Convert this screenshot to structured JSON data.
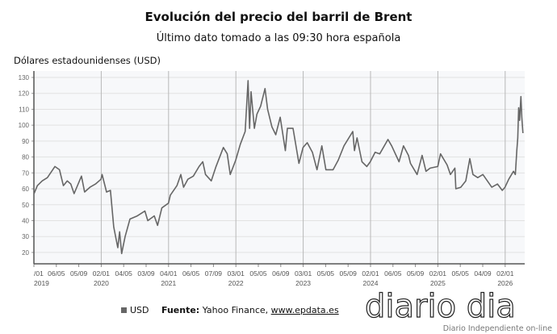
{
  "chart_data": {
    "type": "line",
    "title": "Evolución del precio del barril de Brent",
    "subtitle": "Último dato tomado a las 09:30 hora española",
    "ylabel": "Dólares estadounidenses (USD)",
    "xlabel": "",
    "ylim": [
      15,
      132
    ],
    "yticks": [
      20,
      30,
      40,
      50,
      60,
      70,
      80,
      90,
      100,
      110,
      120,
      130
    ],
    "grid": true,
    "legend_position": "bottom",
    "color": "#666666",
    "xticks": [
      {
        "label": "/01",
        "year": "2019"
      },
      {
        "label": "06/05"
      },
      {
        "label": "05/09"
      },
      {
        "label": "02/01",
        "year": "2020"
      },
      {
        "label": "04/05"
      },
      {
        "label": "03/09"
      },
      {
        "label": "04/01",
        "year": "2021"
      },
      {
        "label": "06/05"
      },
      {
        "label": "07/09"
      },
      {
        "label": "03/01",
        "year": "2022"
      },
      {
        "label": "05/05"
      },
      {
        "label": "06/09"
      },
      {
        "label": "03/01",
        "year": "2023"
      },
      {
        "label": "05/05"
      },
      {
        "label": "05/09"
      },
      {
        "label": "02/01",
        "year": "2024"
      },
      {
        "label": "06/05"
      },
      {
        "label": "05/09"
      },
      {
        "label": "02/01",
        "year": "2025"
      },
      {
        "label": "05/05"
      },
      {
        "label": "04/09"
      },
      {
        "label": "02/01",
        "year": "2026"
      }
    ],
    "series": [
      {
        "name": "USD",
        "points": [
          [
            "2019-01-02",
            57
          ],
          [
            "2019-01-20",
            62
          ],
          [
            "2019-02-15",
            65
          ],
          [
            "2019-03-15",
            67
          ],
          [
            "2019-04-25",
            74
          ],
          [
            "2019-05-20",
            72
          ],
          [
            "2019-06-10",
            62
          ],
          [
            "2019-07-01",
            65
          ],
          [
            "2019-07-20",
            63
          ],
          [
            "2019-08-07",
            57
          ],
          [
            "2019-09-16",
            68
          ],
          [
            "2019-10-03",
            58
          ],
          [
            "2019-11-01",
            61
          ],
          [
            "2019-12-01",
            63
          ],
          [
            "2019-12-31",
            66
          ],
          [
            "2020-01-06",
            69
          ],
          [
            "2020-01-30",
            58
          ],
          [
            "2020-02-20",
            59
          ],
          [
            "2020-03-09",
            36
          ],
          [
            "2020-03-31",
            23
          ],
          [
            "2020-04-10",
            33
          ],
          [
            "2020-04-21",
            19.3
          ],
          [
            "2020-05-10",
            30
          ],
          [
            "2020-06-05",
            41
          ],
          [
            "2020-07-15",
            43
          ],
          [
            "2020-08-25",
            46
          ],
          [
            "2020-09-10",
            40
          ],
          [
            "2020-10-15",
            43
          ],
          [
            "2020-11-02",
            37
          ],
          [
            "2020-11-25",
            48
          ],
          [
            "2020-12-31",
            51
          ],
          [
            "2021-01-10",
            56
          ],
          [
            "2021-02-15",
            62
          ],
          [
            "2021-03-08",
            69
          ],
          [
            "2021-03-23",
            61
          ],
          [
            "2021-04-15",
            66
          ],
          [
            "2021-05-15",
            68
          ],
          [
            "2021-06-15",
            74
          ],
          [
            "2021-07-05",
            77
          ],
          [
            "2021-07-20",
            69
          ],
          [
            "2021-08-20",
            65
          ],
          [
            "2021-09-15",
            74
          ],
          [
            "2021-10-25",
            86
          ],
          [
            "2021-11-15",
            82
          ],
          [
            "2021-12-01",
            69
          ],
          [
            "2021-12-31",
            78
          ],
          [
            "2022-01-25",
            88
          ],
          [
            "2022-02-20",
            96
          ],
          [
            "2022-03-08",
            128
          ],
          [
            "2022-03-16",
            98
          ],
          [
            "2022-03-24",
            121
          ],
          [
            "2022-04-11",
            98
          ],
          [
            "2022-04-25",
            107
          ],
          [
            "2022-05-15",
            112
          ],
          [
            "2022-06-08",
            123
          ],
          [
            "2022-06-22",
            110
          ],
          [
            "2022-07-15",
            99
          ],
          [
            "2022-08-05",
            94
          ],
          [
            "2022-08-29",
            105
          ],
          [
            "2022-09-26",
            84
          ],
          [
            "2022-10-07",
            98
          ],
          [
            "2022-11-07",
            98
          ],
          [
            "2022-12-09",
            76
          ],
          [
            "2022-12-31",
            86
          ],
          [
            "2023-01-23",
            89
          ],
          [
            "2023-02-20",
            83
          ],
          [
            "2023-03-17",
            72
          ],
          [
            "2023-04-12",
            87
          ],
          [
            "2023-05-04",
            72
          ],
          [
            "2023-06-12",
            72
          ],
          [
            "2023-07-10",
            78
          ],
          [
            "2023-08-10",
            87
          ],
          [
            "2023-09-27",
            96
          ],
          [
            "2023-10-06",
            84
          ],
          [
            "2023-10-20",
            92
          ],
          [
            "2023-11-16",
            77
          ],
          [
            "2023-12-12",
            74
          ],
          [
            "2023-12-31",
            77
          ],
          [
            "2024-01-26",
            83
          ],
          [
            "2024-02-20",
            82
          ],
          [
            "2024-04-05",
            91
          ],
          [
            "2024-04-25",
            87
          ],
          [
            "2024-06-04",
            77
          ],
          [
            "2024-06-28",
            87
          ],
          [
            "2024-07-25",
            81
          ],
          [
            "2024-08-05",
            76
          ],
          [
            "2024-09-10",
            69
          ],
          [
            "2024-10-07",
            81
          ],
          [
            "2024-10-28",
            71
          ],
          [
            "2024-11-20",
            73
          ],
          [
            "2024-12-31",
            74
          ],
          [
            "2025-01-15",
            82
          ],
          [
            "2025-02-20",
            75
          ],
          [
            "2025-03-10",
            69
          ],
          [
            "2025-04-03",
            73
          ],
          [
            "2025-04-08",
            60
          ],
          [
            "2025-05-05",
            61
          ],
          [
            "2025-06-01",
            65
          ],
          [
            "2025-06-23",
            79
          ],
          [
            "2025-07-10",
            69
          ],
          [
            "2025-08-05",
            67
          ],
          [
            "2025-09-02",
            69
          ],
          [
            "2025-10-20",
            61
          ],
          [
            "2025-11-20",
            63
          ],
          [
            "2025-12-16",
            59
          ],
          [
            "2025-12-31",
            61
          ],
          [
            "2026-01-20",
            66
          ],
          [
            "2026-02-15",
            71
          ],
          [
            "2026-02-25",
            69
          ],
          [
            "2026-03-05",
            84
          ],
          [
            "2026-03-10",
            92
          ],
          [
            "2026-03-15",
            111
          ],
          [
            "2026-03-20",
            103
          ],
          [
            "2026-03-27",
            118
          ],
          [
            "2026-04-01",
            105
          ],
          [
            "2026-04-07",
            95
          ]
        ]
      }
    ]
  },
  "legend": {
    "label": "USD"
  },
  "source": {
    "label": "Fuente:",
    "text": "Yahoo Finance,",
    "link": "www.epdata.es"
  },
  "logo": {
    "name": "diario dia",
    "tagline": "Diario Independiente on-line"
  }
}
